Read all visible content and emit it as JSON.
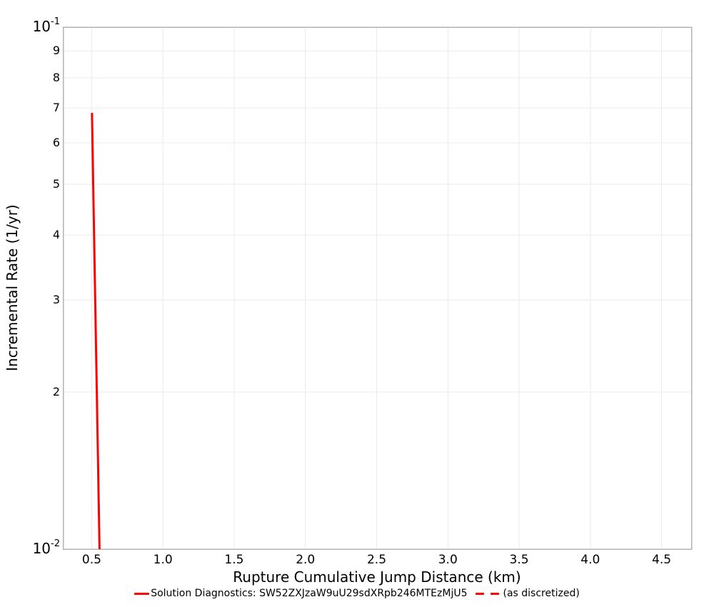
{
  "chart_data": {
    "type": "line",
    "title": "",
    "xlabel": "Rupture Cumulative Jump Distance (km)",
    "ylabel": "Incremental Rate (1/yr)",
    "xscale": "linear",
    "yscale": "log",
    "xlim": [
      0.3,
      4.71
    ],
    "ylim": [
      0.01,
      0.1
    ],
    "grid": true,
    "legend_position": "bottom-center",
    "x_ticks": [
      0.5,
      1.0,
      1.5,
      2.0,
      2.5,
      3.0,
      3.5,
      4.0,
      4.5
    ],
    "x_tick_labels": [
      "0.5",
      "1.0",
      "1.5",
      "2.0",
      "2.5",
      "3.0",
      "3.5",
      "4.0",
      "4.5"
    ],
    "y_major_ticks": [
      {
        "value": 0.1,
        "base": "10",
        "exponent": "-1"
      },
      {
        "value": 0.01,
        "base": "10",
        "exponent": "-2"
      }
    ],
    "y_minor_ticks": [
      {
        "value": 0.09,
        "label": "9"
      },
      {
        "value": 0.08,
        "label": "8"
      },
      {
        "value": 0.07,
        "label": "7"
      },
      {
        "value": 0.06,
        "label": "6"
      },
      {
        "value": 0.05,
        "label": "5"
      },
      {
        "value": 0.04,
        "label": "4"
      },
      {
        "value": 0.03,
        "label": "3"
      },
      {
        "value": 0.02,
        "label": "2"
      }
    ],
    "series": [
      {
        "name": "Solution Diagnostics: SW52ZXJzaW9uU29sdXRpb246MTEzMjU5",
        "color": "#ff0000",
        "line_style": "solid",
        "line_width": 3,
        "points": [
          [
            0.502,
            0.0685
          ],
          [
            0.555,
            0.01
          ]
        ]
      },
      {
        "name": "(as discretized)",
        "color": "#ff0000",
        "line_style": "dashed",
        "line_width": 3,
        "points": []
      }
    ],
    "colors": {
      "background": "#ffffff",
      "grid": "#ebebeb",
      "axis_border": "#b3b3b3",
      "text": "#000000",
      "line_red": "#ff0000"
    }
  }
}
